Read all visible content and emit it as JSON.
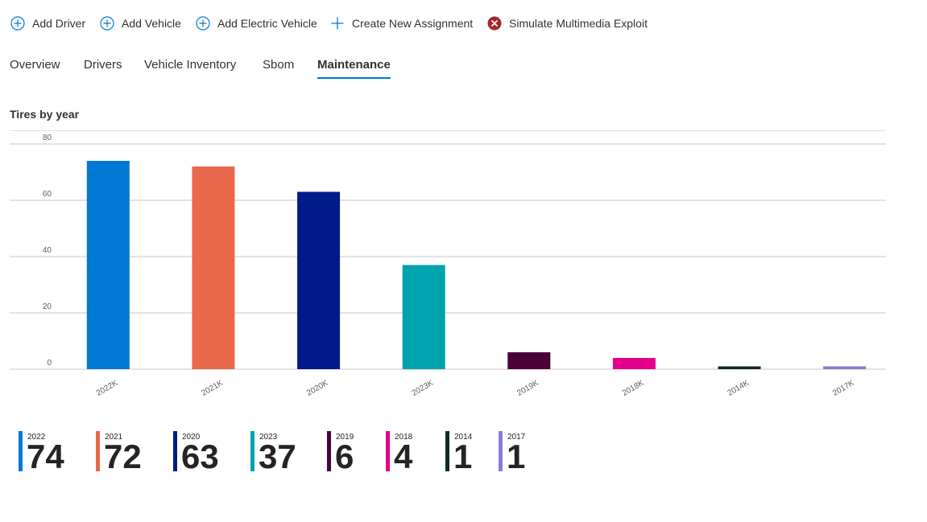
{
  "toolbar": {
    "items": [
      {
        "label": "Add Driver",
        "icon": "plus-circle-icon"
      },
      {
        "label": "Add Vehicle",
        "icon": "plus-circle-icon"
      },
      {
        "label": "Add Electric Vehicle",
        "icon": "plus-circle-icon"
      },
      {
        "label": "Create New Assignment",
        "icon": "plus-icon"
      },
      {
        "label": "Simulate Multimedia Exploit",
        "icon": "error-circle-icon"
      }
    ],
    "accent_color": "#0078d4",
    "danger_color": "#a4262c"
  },
  "tabs": [
    {
      "label": "Overview"
    },
    {
      "label": "Drivers"
    },
    {
      "label": "Vehicle Inventory"
    },
    {
      "label": "Sbom"
    },
    {
      "label": "Maintenance",
      "active": true
    }
  ],
  "chart": {
    "title": "Tires by year"
  },
  "chart_data": {
    "type": "bar",
    "title": "Tires by year",
    "categories": [
      "2022K",
      "2021K",
      "2020K",
      "2023K",
      "2019K",
      "2018K",
      "2014K",
      "2017K"
    ],
    "values": [
      74,
      72,
      63,
      37,
      6,
      4,
      1,
      1
    ],
    "colors": [
      "#0078d4",
      "#e8684d",
      "#001a8c",
      "#00a2ad",
      "#4b0039",
      "#e3008c",
      "#0e2d20",
      "#8e79d1"
    ],
    "ylim": [
      0,
      80
    ],
    "yticks": [
      0,
      20,
      40,
      60,
      80
    ],
    "grid": true,
    "xlabel": "",
    "ylabel": ""
  },
  "cards": [
    {
      "year": "2022",
      "value": "74",
      "color": "#0078d4"
    },
    {
      "year": "2021",
      "value": "72",
      "color": "#e8684d"
    },
    {
      "year": "2020",
      "value": "63",
      "color": "#001a8c"
    },
    {
      "year": "2023",
      "value": "37",
      "color": "#00a2ad"
    },
    {
      "year": "2019",
      "value": "6",
      "color": "#4b0039"
    },
    {
      "year": "2018",
      "value": "4",
      "color": "#e3008c"
    },
    {
      "year": "2014",
      "value": "1",
      "color": "#0e2d20"
    },
    {
      "year": "2017",
      "value": "1",
      "color": "#8e79d1"
    }
  ]
}
